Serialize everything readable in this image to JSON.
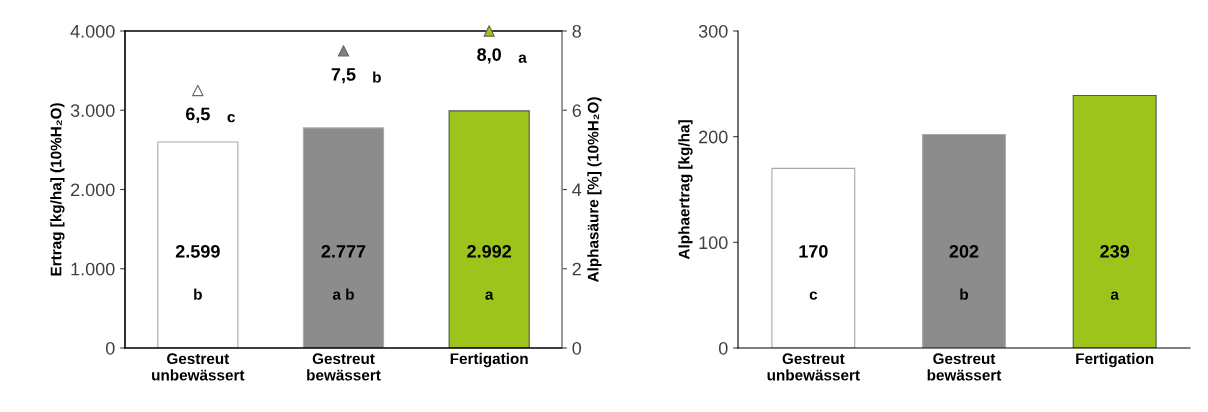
{
  "chart_data": [
    {
      "type": "bar",
      "ylabel": "Ertrag [kg/ha] (10%H₂O)",
      "y2label": "Alphasäure [%] (10%H₂O)",
      "categories": [
        "Gestreut\nunbewässert",
        "Gestreut\nbewässert",
        "Fertigation"
      ],
      "series": [
        {
          "values": [
            2599,
            2777,
            2992
          ],
          "colors": [
            "#ffffff",
            "#8c8c8c",
            "#9dc41a"
          ],
          "value_labels": [
            "2.599",
            "2.777",
            "2.992"
          ]
        },
        {
          "type": "scatter",
          "axis": "y2",
          "marker": "triangle",
          "values": [
            6.5,
            7.5,
            8.0
          ],
          "colors": [
            "#ffffff",
            "#808080",
            "#9dc41a"
          ],
          "value_labels": [
            "6,5",
            "7,5",
            "8,0"
          ]
        }
      ],
      "ylim": [
        0,
        4000
      ],
      "yticks": [
        0,
        {
          "value": 1000,
          "label": "1.000"
        },
        {
          "value": 2000,
          "label": "2.000"
        },
        {
          "value": 3000,
          "label": "3.000"
        },
        {
          "value": 4000,
          "label": "4.000"
        }
      ],
      "y2lim": [
        0,
        8
      ],
      "y2ticks": [
        0,
        2,
        4,
        6,
        8
      ],
      "grid": false,
      "legend": false,
      "annotations": [
        "b",
        "a b",
        "a",
        "c",
        "b",
        "a"
      ]
    },
    {
      "type": "bar",
      "ylabel": "Alphaertrag [kg/ha]",
      "categories": [
        "Gestreut\nunbewässert",
        "Gestreut\nbewässert",
        "Fertigation"
      ],
      "series": [
        {
          "values": [
            170,
            202,
            239
          ],
          "colors": [
            "#ffffff",
            "#8c8c8c",
            "#9dc41a"
          ],
          "value_labels": [
            "170",
            "202",
            "239"
          ]
        }
      ],
      "ylim": [
        0,
        300
      ],
      "yticks": [
        0,
        100,
        200,
        300
      ],
      "grid": false,
      "legend": false,
      "annotations": [
        "c",
        "b",
        "a"
      ]
    }
  ]
}
